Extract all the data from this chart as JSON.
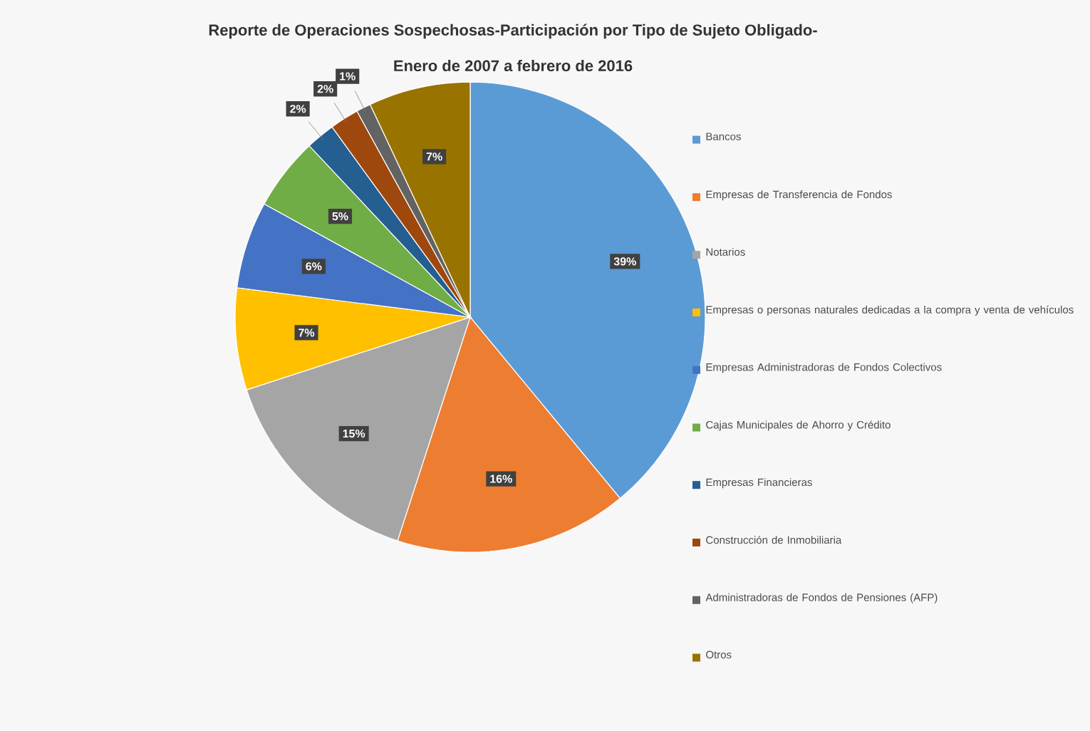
{
  "chart_data": {
    "type": "pie",
    "title": "Reporte de Operaciones Sospechosas-Participación por Tipo de Sujeto Obligado-",
    "subtitle": "Enero de 2007 a febrero de 2016",
    "categories": [
      "Bancos",
      "Empresas de Transferencia de Fondos",
      "Notarios",
      "Empresas o personas naturales dedicadas a la compra y venta de vehículos",
      "Empresas Administradoras de Fondos Colectivos",
      "Cajas Municipales de Ahorro y Crédito",
      "Empresas Financieras",
      "Construcción de Inmobiliaria",
      "Administradoras de Fondos de Pensiones (AFP)",
      "Otros"
    ],
    "values": [
      39,
      16,
      15,
      7,
      6,
      5,
      2,
      2,
      1,
      7
    ],
    "value_labels": [
      "39%",
      "16%",
      "15%",
      "7%",
      "6%",
      "5%",
      "2%",
      "2%",
      "1%",
      "7%"
    ],
    "colors": [
      "#5b9bd5",
      "#ed7d31",
      "#a5a5a5",
      "#ffc000",
      "#4472c4",
      "#70ad47",
      "#255e91",
      "#9e480e",
      "#636363",
      "#997300"
    ],
    "legend": "right"
  }
}
